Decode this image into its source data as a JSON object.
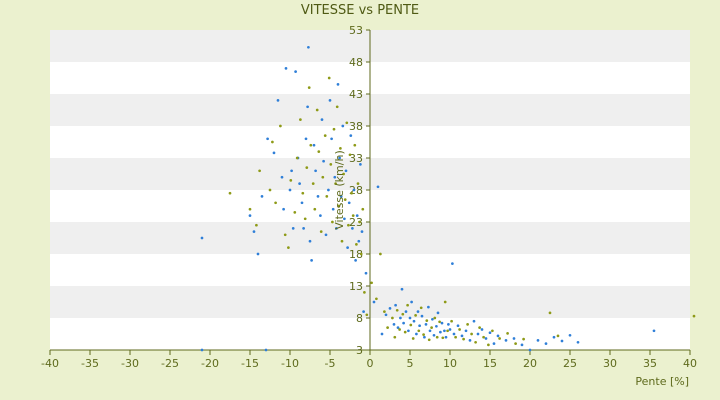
{
  "chart_data": {
    "type": "scatter",
    "title": "VITESSE vs PENTE",
    "xlabel": "Pente [%]",
    "ylabel": "Vitesse (km/h)",
    "xlim": [
      -40,
      40
    ],
    "ylim": [
      3,
      53
    ],
    "xticks": [
      -40,
      -35,
      -30,
      -25,
      -20,
      -15,
      -10,
      -5,
      0,
      5,
      10,
      15,
      20,
      25,
      30,
      35,
      40
    ],
    "yticks": [
      3,
      8,
      13,
      18,
      23,
      28,
      33,
      38,
      43,
      48,
      53
    ],
    "grid": "horizontal alternating bands",
    "legend": "none",
    "colors": {
      "background": "#ebf1cf",
      "plot_band_light": "#ffffff",
      "plot_band_dark": "#efefef",
      "axis": "#5f6a1e",
      "text": "#5e6a1c",
      "series_a": "#2f7fd8",
      "series_b": "#8e9a17"
    },
    "series": [
      {
        "name": "",
        "color": "#2f7fd8",
        "points": [
          [
            -21,
            20.5
          ],
          [
            -21,
            3
          ],
          [
            -13,
            3
          ],
          [
            -15,
            24
          ],
          [
            -14.5,
            21.5
          ],
          [
            -14,
            18
          ],
          [
            -13.5,
            27
          ],
          [
            -12.8,
            36
          ],
          [
            -12,
            33.8
          ],
          [
            -11.5,
            42
          ],
          [
            -11,
            30
          ],
          [
            -10.8,
            25
          ],
          [
            -10.5,
            47
          ],
          [
            -10,
            28
          ],
          [
            -9.8,
            31
          ],
          [
            -9.6,
            22
          ],
          [
            -9.3,
            46.5
          ],
          [
            -9,
            33
          ],
          [
            -8.8,
            29
          ],
          [
            -8.5,
            26
          ],
          [
            -8.3,
            22
          ],
          [
            -8,
            36
          ],
          [
            -7.8,
            41
          ],
          [
            -7.7,
            50.3
          ],
          [
            -7.5,
            20
          ],
          [
            -7.3,
            17
          ],
          [
            -7,
            35
          ],
          [
            -6.8,
            31
          ],
          [
            -6.5,
            27
          ],
          [
            -6.2,
            24
          ],
          [
            -6,
            39
          ],
          [
            -5.8,
            32.5
          ],
          [
            -5.5,
            21
          ],
          [
            -5.2,
            28
          ],
          [
            -5,
            42
          ],
          [
            -4.8,
            36
          ],
          [
            -4.6,
            25
          ],
          [
            -4.4,
            30
          ],
          [
            -4.2,
            22
          ],
          [
            -4,
            44.5
          ],
          [
            -3.8,
            33
          ],
          [
            -3.6,
            27
          ],
          [
            -3.4,
            38
          ],
          [
            -3.2,
            23.5
          ],
          [
            -3,
            31
          ],
          [
            -2.8,
            19
          ],
          [
            -2.6,
            26
          ],
          [
            -2.4,
            36.5
          ],
          [
            -2.2,
            22
          ],
          [
            -2,
            28
          ],
          [
            -1.8,
            17
          ],
          [
            -1.6,
            24
          ],
          [
            -1.4,
            20
          ],
          [
            -1.2,
            32
          ],
          [
            -1,
            21.5
          ],
          [
            -0.8,
            9
          ],
          [
            -0.5,
            15
          ],
          [
            0.5,
            10.5
          ],
          [
            1,
            28.5
          ],
          [
            1.5,
            5.5
          ],
          [
            2,
            8.5
          ],
          [
            2.5,
            9.5
          ],
          [
            3,
            7
          ],
          [
            3.2,
            10
          ],
          [
            3.5,
            6.5
          ],
          [
            3.8,
            8
          ],
          [
            4,
            12.5
          ],
          [
            4.2,
            7.2
          ],
          [
            4.5,
            9
          ],
          [
            4.8,
            6
          ],
          [
            5,
            8
          ],
          [
            5.2,
            10.5
          ],
          [
            5.5,
            7.5
          ],
          [
            5.8,
            5.5
          ],
          [
            6,
            9
          ],
          [
            6.2,
            6.8
          ],
          [
            6.5,
            8.3
          ],
          [
            6.8,
            5
          ],
          [
            7,
            7
          ],
          [
            7.3,
            9.7
          ],
          [
            7.5,
            6
          ],
          [
            7.8,
            7.8
          ],
          [
            8,
            5.3
          ],
          [
            8.3,
            6.7
          ],
          [
            8.5,
            8.8
          ],
          [
            8.8,
            5.8
          ],
          [
            9,
            7.2
          ],
          [
            9.3,
            6
          ],
          [
            9.5,
            5
          ],
          [
            9.8,
            7
          ],
          [
            10,
            6.2
          ],
          [
            10.3,
            16.5
          ],
          [
            10.5,
            5.5
          ],
          [
            11,
            6.8
          ],
          [
            11.5,
            5.2
          ],
          [
            12,
            6
          ],
          [
            12.5,
            4.5
          ],
          [
            13,
            7.5
          ],
          [
            13.5,
            5.5
          ],
          [
            14,
            6.2
          ],
          [
            14.5,
            4.8
          ],
          [
            15,
            5.7
          ],
          [
            15.5,
            4
          ],
          [
            16,
            5.2
          ],
          [
            17,
            4.5
          ],
          [
            18,
            4.8
          ],
          [
            19,
            3.8
          ],
          [
            20,
            3
          ],
          [
            21,
            4.5
          ],
          [
            22,
            4
          ],
          [
            23,
            5
          ],
          [
            24,
            4.4
          ],
          [
            25,
            5.3
          ],
          [
            26,
            4.2
          ],
          [
            35.5,
            6
          ]
        ]
      },
      {
        "name": "",
        "color": "#8e9a17",
        "points": [
          [
            -17.5,
            27.5
          ],
          [
            -15,
            25
          ],
          [
            -14.2,
            22.5
          ],
          [
            -13.8,
            31
          ],
          [
            -12.5,
            28
          ],
          [
            -12.2,
            35.5
          ],
          [
            -11.8,
            26
          ],
          [
            -11.2,
            38
          ],
          [
            -10.6,
            21
          ],
          [
            -10.2,
            19
          ],
          [
            -9.9,
            29.5
          ],
          [
            -9.4,
            24.5
          ],
          [
            -9.1,
            33
          ],
          [
            -8.7,
            39
          ],
          [
            -8.4,
            27.5
          ],
          [
            -8.1,
            23.5
          ],
          [
            -7.9,
            31.5
          ],
          [
            -7.6,
            44
          ],
          [
            -7.4,
            35
          ],
          [
            -7.1,
            29
          ],
          [
            -6.9,
            25
          ],
          [
            -6.6,
            40.5
          ],
          [
            -6.4,
            34
          ],
          [
            -6.1,
            21.5
          ],
          [
            -5.9,
            30
          ],
          [
            -5.6,
            36.5
          ],
          [
            -5.4,
            27
          ],
          [
            -5.1,
            45.5
          ],
          [
            -4.9,
            32
          ],
          [
            -4.7,
            23
          ],
          [
            -4.5,
            37.5
          ],
          [
            -4.3,
            29
          ],
          [
            -4.1,
            41
          ],
          [
            -3.9,
            25.5
          ],
          [
            -3.7,
            34.5
          ],
          [
            -3.5,
            20
          ],
          [
            -3.3,
            30.5
          ],
          [
            -3.1,
            26.5
          ],
          [
            -2.9,
            38.5
          ],
          [
            -2.7,
            22.5
          ],
          [
            -2.5,
            33.5
          ],
          [
            -2.3,
            27.5
          ],
          [
            -2.1,
            24
          ],
          [
            -1.9,
            35
          ],
          [
            -1.7,
            19.5
          ],
          [
            -1.5,
            29
          ],
          [
            -1.3,
            23
          ],
          [
            -1.1,
            18
          ],
          [
            -0.9,
            25
          ],
          [
            -0.7,
            12
          ],
          [
            -0.4,
            8.5
          ],
          [
            0.2,
            13.5
          ],
          [
            0.8,
            11
          ],
          [
            1.3,
            18
          ],
          [
            1.8,
            9
          ],
          [
            2.2,
            6.5
          ],
          [
            2.8,
            8
          ],
          [
            3.1,
            5
          ],
          [
            3.4,
            9.2
          ],
          [
            3.7,
            6.2
          ],
          [
            4.1,
            8.6
          ],
          [
            4.4,
            5.8
          ],
          [
            4.7,
            10
          ],
          [
            5.1,
            6.9
          ],
          [
            5.4,
            4.8
          ],
          [
            5.7,
            8.4
          ],
          [
            6.1,
            6
          ],
          [
            6.4,
            9.6
          ],
          [
            6.7,
            5.4
          ],
          [
            7.1,
            7.6
          ],
          [
            7.4,
            4.6
          ],
          [
            7.7,
            6.5
          ],
          [
            8.1,
            8
          ],
          [
            8.4,
            5
          ],
          [
            8.7,
            7.4
          ],
          [
            9.1,
            4.9
          ],
          [
            9.4,
            10.5
          ],
          [
            9.7,
            6
          ],
          [
            10.2,
            7.5
          ],
          [
            10.7,
            5
          ],
          [
            11.2,
            6.2
          ],
          [
            11.7,
            4.7
          ],
          [
            12.2,
            7
          ],
          [
            12.7,
            5.5
          ],
          [
            13.2,
            4.2
          ],
          [
            13.7,
            6.5
          ],
          [
            14.2,
            5
          ],
          [
            14.8,
            3.8
          ],
          [
            15.3,
            6
          ],
          [
            16.2,
            4.8
          ],
          [
            17.2,
            5.6
          ],
          [
            18.2,
            4
          ],
          [
            19.2,
            4.7
          ],
          [
            22.5,
            8.8
          ],
          [
            23.5,
            5.2
          ],
          [
            40.5,
            8.3
          ]
        ]
      }
    ]
  }
}
